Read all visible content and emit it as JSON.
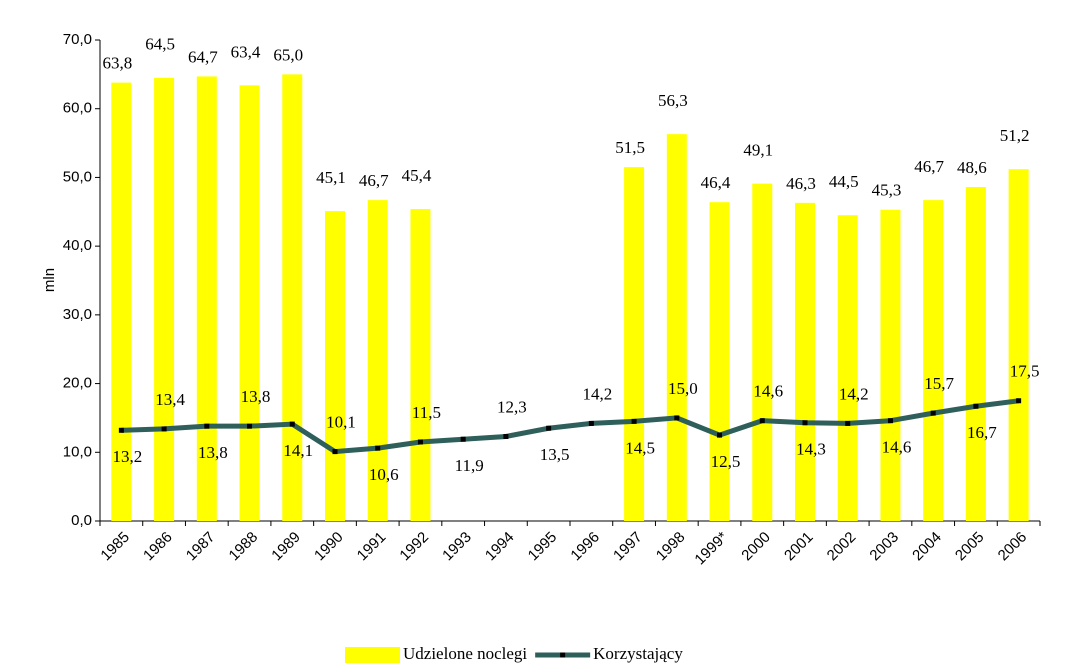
{
  "chart_data": {
    "type": "bar",
    "ylabel": "mln",
    "categories": [
      "1985",
      "1986",
      "1987",
      "1988",
      "1989",
      "1990",
      "1991",
      "1992",
      "1993",
      "1994",
      "1995",
      "1996",
      "1997",
      "1998",
      "1999*",
      "2000",
      "2001",
      "2002",
      "2003",
      "2004",
      "2005",
      "2006"
    ],
    "series": [
      {
        "name": "Udzielone noclegi",
        "type": "bar",
        "color": "#ffff00",
        "values": [
          63.8,
          64.5,
          64.7,
          63.4,
          65.0,
          45.1,
          46.7,
          45.4,
          null,
          null,
          null,
          null,
          51.5,
          56.3,
          46.4,
          49.1,
          46.3,
          44.5,
          45.3,
          46.7,
          48.6,
          51.2
        ],
        "value_labels": [
          "63,8",
          "64,5",
          "64,7",
          "63,4",
          "65,0",
          "45,1",
          "46,7",
          "45,4",
          null,
          null,
          null,
          null,
          "51,5",
          "56,3",
          "46,4",
          "49,1",
          "46,3",
          "44,5",
          "45,3",
          "46,7",
          "48,6",
          "51,2"
        ]
      },
      {
        "name": "Korzystający",
        "type": "line",
        "color": "#2f5f5a",
        "values": [
          13.2,
          13.4,
          13.8,
          13.8,
          14.1,
          10.1,
          10.6,
          11.5,
          11.9,
          12.3,
          13.5,
          14.2,
          14.5,
          15.0,
          12.5,
          14.6,
          14.3,
          14.2,
          14.6,
          15.7,
          16.7,
          17.5
        ],
        "value_labels": [
          "13,2",
          "13,4",
          "13,8",
          "13,8",
          "14,1",
          "10,1",
          "10,6",
          "11,5",
          "11,9",
          "12,3",
          "13,5",
          "14,2",
          "14,5",
          "15,0",
          "12,5",
          "14,6",
          "14,3",
          "14,2",
          "14,6",
          "15,7",
          "16,7",
          "17,5"
        ]
      }
    ],
    "ylim": [
      0,
      70
    ],
    "yticks": [
      {
        "value": 0,
        "label": "0,0"
      },
      {
        "value": 10,
        "label": "10,0"
      },
      {
        "value": 20,
        "label": "20,0"
      },
      {
        "value": 30,
        "label": "30,0"
      },
      {
        "value": 40,
        "label": "40,0"
      },
      {
        "value": 50,
        "label": "50,0"
      },
      {
        "value": 60,
        "label": "60,0"
      },
      {
        "value": 70,
        "label": "70,0"
      }
    ],
    "legend": "bottom"
  }
}
